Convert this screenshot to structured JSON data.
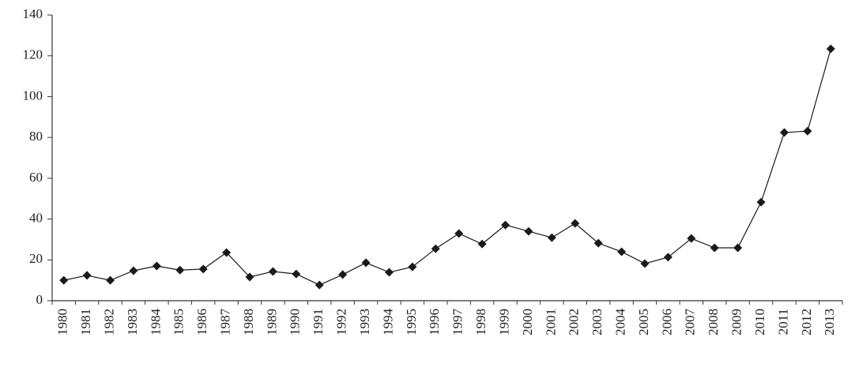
{
  "chart_data": {
    "type": "line",
    "categories": [
      "1980",
      "1981",
      "1982",
      "1983",
      "1984",
      "1985",
      "1986",
      "1987",
      "1988",
      "1989",
      "1990",
      "1991",
      "1992",
      "1993",
      "1994",
      "1995",
      "1996",
      "1997",
      "1998",
      "1999",
      "2000",
      "2001",
      "2002",
      "2003",
      "2004",
      "2005",
      "2006",
      "2007",
      "2008",
      "2009",
      "2010",
      "2011",
      "2012",
      "2013"
    ],
    "values": [
      10,
      12.4,
      10,
      14.7,
      17,
      15,
      15.5,
      23.6,
      11.6,
      14.3,
      13.1,
      7.7,
      12.8,
      18.6,
      13.9,
      16.6,
      25.5,
      32.9,
      27.8,
      37.1,
      34,
      30.9,
      37.9,
      28.2,
      24,
      18.2,
      21.3,
      30.5,
      25.9,
      25.9,
      48.3,
      82.4,
      83.1,
      123.4
    ],
    "color": "#1a1a1a",
    "ylim": [
      0,
      140
    ],
    "yticks": [
      0,
      20,
      40,
      60,
      80,
      100,
      120,
      140
    ],
    "grid": false
  }
}
